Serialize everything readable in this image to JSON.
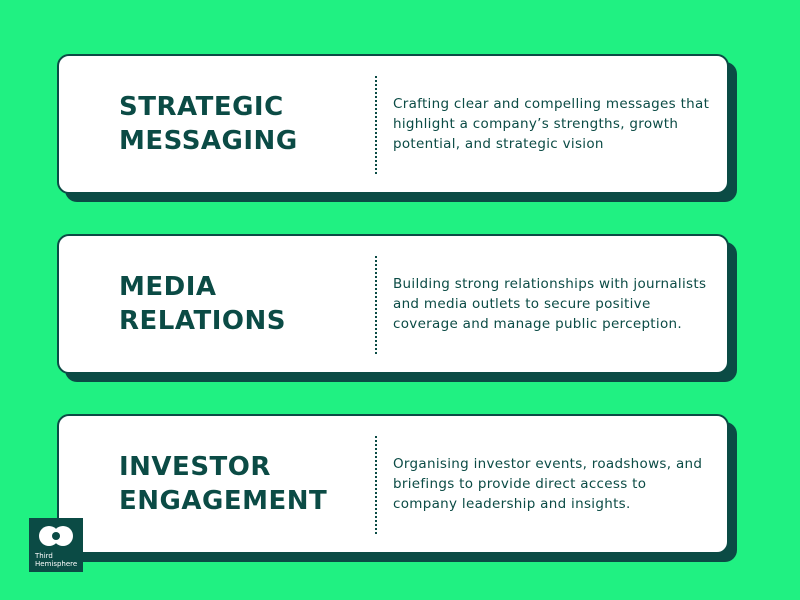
{
  "cards": [
    {
      "title_line1": "STRATEGIC",
      "title_line2": "MESSAGING",
      "description": "Crafting clear and compelling messages that highlight a company’s strengths, growth potential, and strategic vision"
    },
    {
      "title_line1": "MEDIA",
      "title_line2": "RELATIONS",
      "description": "Building strong relationships with journalists and media outlets to secure positive coverage and manage public perception."
    },
    {
      "title_line1": "INVESTOR",
      "title_line2": "ENGAGEMENT",
      "description": "Organising investor events, roadshows, and briefings to provide direct access to company leadership and insights."
    }
  ],
  "logo": {
    "line1": "Third",
    "line2": "Hemisphere"
  },
  "colors": {
    "background": "#20f182",
    "dark_teal": "#0b4b45",
    "card": "#ffffff"
  }
}
